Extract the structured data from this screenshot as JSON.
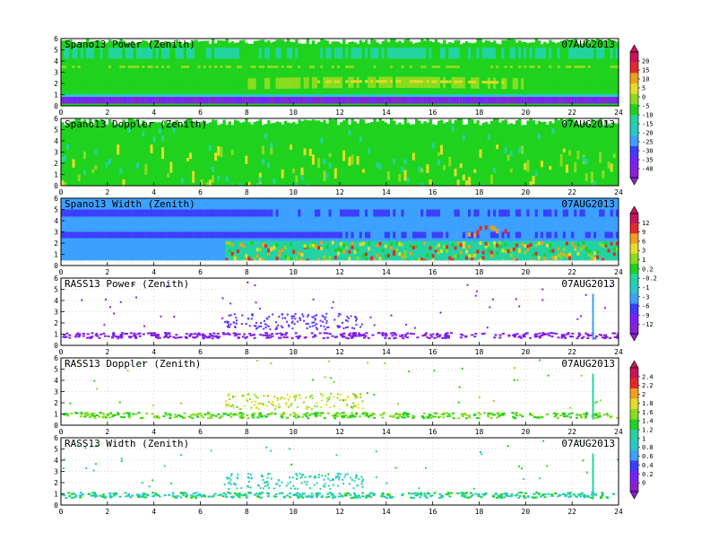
{
  "chart_data": [
    {
      "type": "heatmap",
      "title": "Spano13 Power (Zenith)",
      "date": "07AUG2013",
      "xlim": [
        0,
        24
      ],
      "ylim": [
        0,
        6
      ],
      "x_ticks": [
        0,
        2,
        4,
        6,
        8,
        10,
        12,
        14,
        16,
        18,
        20,
        22,
        24
      ],
      "y_ticks": [
        0,
        1,
        2,
        3,
        4,
        5,
        6
      ],
      "colorbar": {
        "ticks": [
          "20",
          "15",
          "10",
          "5",
          "0",
          "-5",
          "-10",
          "-15",
          "-20",
          "-25",
          "-30",
          "-35",
          "-40"
        ]
      }
    },
    {
      "type": "heatmap",
      "title": "Spano13 Doppler (Zenith)",
      "date": "07AUG2013",
      "xlim": [
        0,
        24
      ],
      "ylim": [
        0,
        6
      ],
      "x_ticks": [
        0,
        2,
        4,
        6,
        8,
        10,
        12,
        14,
        16,
        18,
        20,
        22,
        24
      ],
      "y_ticks": [
        0,
        1,
        2,
        3,
        4,
        5,
        6
      ]
    },
    {
      "type": "heatmap",
      "title": "Spano13 Width (Zenith)",
      "date": "07AUG2013",
      "xlim": [
        0,
        24
      ],
      "ylim": [
        0,
        6
      ],
      "x_ticks": [
        0,
        2,
        4,
        6,
        8,
        10,
        12,
        14,
        16,
        18,
        20,
        22,
        24
      ],
      "y_ticks": [
        0,
        1,
        2,
        3,
        4,
        5,
        6
      ],
      "colorbar": {
        "ticks": [
          "12",
          "9",
          "6",
          "3",
          "1",
          "0.2",
          "-0.2",
          "-1",
          "-3",
          "-6",
          "-9",
          "-12"
        ]
      }
    },
    {
      "type": "heatmap",
      "title": "RASS13 Power (Zenith)",
      "date": "07AUG2013",
      "xlim": [
        0,
        24
      ],
      "ylim": [
        0,
        6
      ],
      "x_ticks": [
        0,
        2,
        4,
        6,
        8,
        10,
        12,
        14,
        16,
        18,
        20,
        22,
        24
      ],
      "y_ticks": [
        0,
        1,
        2,
        3,
        4,
        5,
        6
      ]
    },
    {
      "type": "heatmap",
      "title": "RASS13 Doppler (Zenith)",
      "date": "07AUG2013",
      "xlim": [
        0,
        24
      ],
      "ylim": [
        0,
        6
      ],
      "x_ticks": [
        0,
        2,
        4,
        6,
        8,
        10,
        12,
        14,
        16,
        18,
        20,
        22,
        24
      ],
      "y_ticks": [
        0,
        1,
        2,
        3,
        4,
        5,
        6
      ],
      "colorbar": {
        "ticks": [
          "2.4",
          "2.2",
          "2",
          "1.8",
          "1.6",
          "1.4",
          "1.2",
          "1",
          "0.8",
          "0.6",
          "0.4",
          "0.2",
          "0"
        ]
      }
    },
    {
      "type": "heatmap",
      "title": "RASS13 Width (Zenith)",
      "date": "07AUG2013",
      "xlim": [
        0,
        24
      ],
      "ylim": [
        0,
        6
      ],
      "x_ticks": [
        0,
        2,
        4,
        6,
        8,
        10,
        12,
        14,
        16,
        18,
        20,
        22,
        24
      ],
      "y_ticks": [
        0,
        1,
        2,
        3,
        4,
        5,
        6
      ]
    }
  ],
  "colors": {
    "violet": "#8a1fd8",
    "purple": "#7a1fff",
    "blue": "#3c3cff",
    "sky": "#3ca0ff",
    "cyan": "#28c8c8",
    "teal": "#22d4a0",
    "green": "#1ed21e",
    "lime": "#8cdc1e",
    "yellow": "#e6dc28",
    "orange": "#f0a01e",
    "red": "#e62828",
    "magenta": "#c8145a"
  }
}
